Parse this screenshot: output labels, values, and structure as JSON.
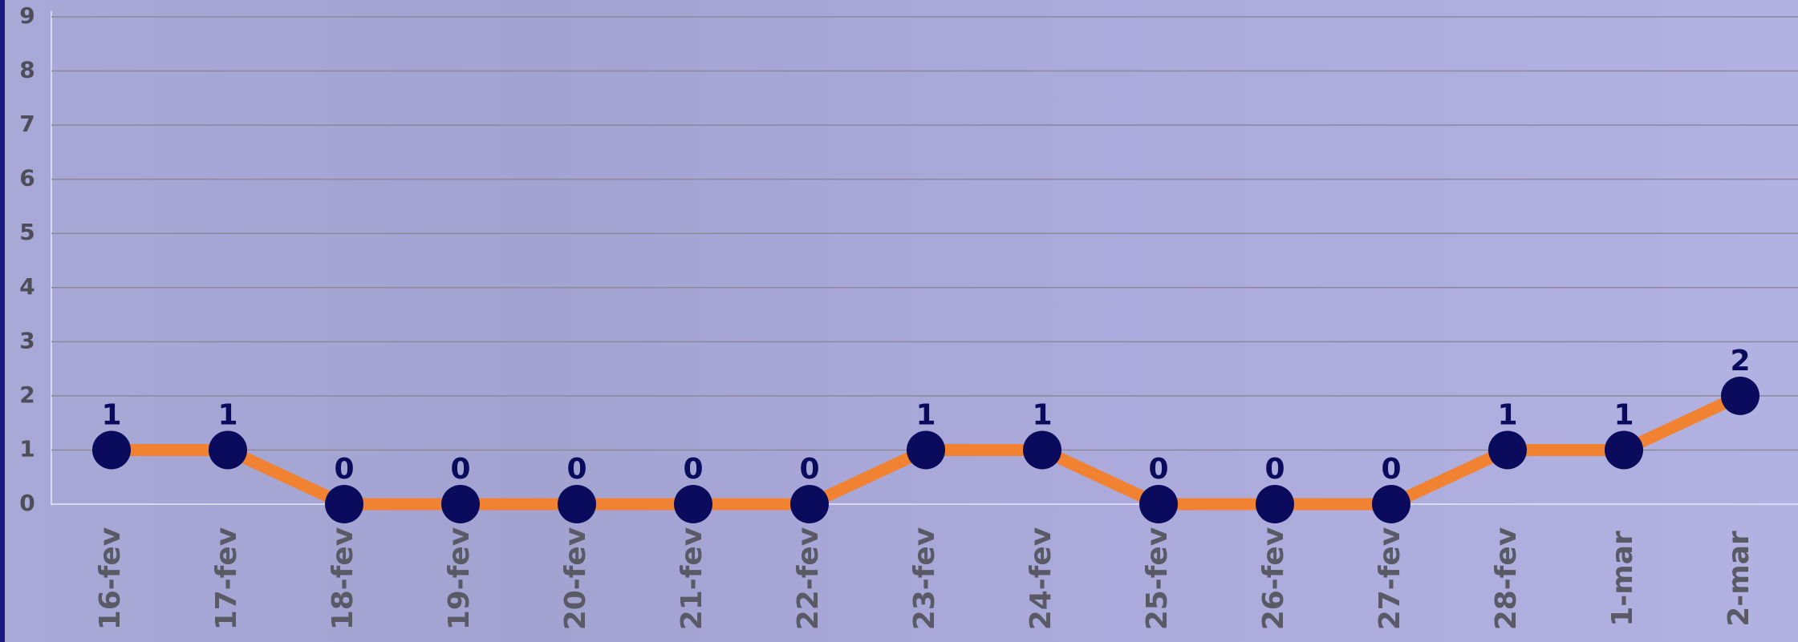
{
  "chart_data": {
    "type": "line",
    "categories": [
      "16-fev",
      "17-fev",
      "18-fev",
      "19-fev",
      "20-fev",
      "21-fev",
      "22-fev",
      "23-fev",
      "24-fev",
      "25-fev",
      "26-fev",
      "27-fev",
      "28-fev",
      "1-mar",
      "2-mar"
    ],
    "values": [
      1,
      1,
      0,
      0,
      0,
      0,
      0,
      1,
      1,
      0,
      0,
      0,
      1,
      1,
      2
    ],
    "color": "#f08232",
    "marker_color": "#0b0b5e",
    "ylim": [
      0,
      9
    ],
    "yticks": [
      0,
      1,
      2,
      3,
      4,
      5,
      6,
      7,
      8,
      9
    ],
    "grid": true
  }
}
